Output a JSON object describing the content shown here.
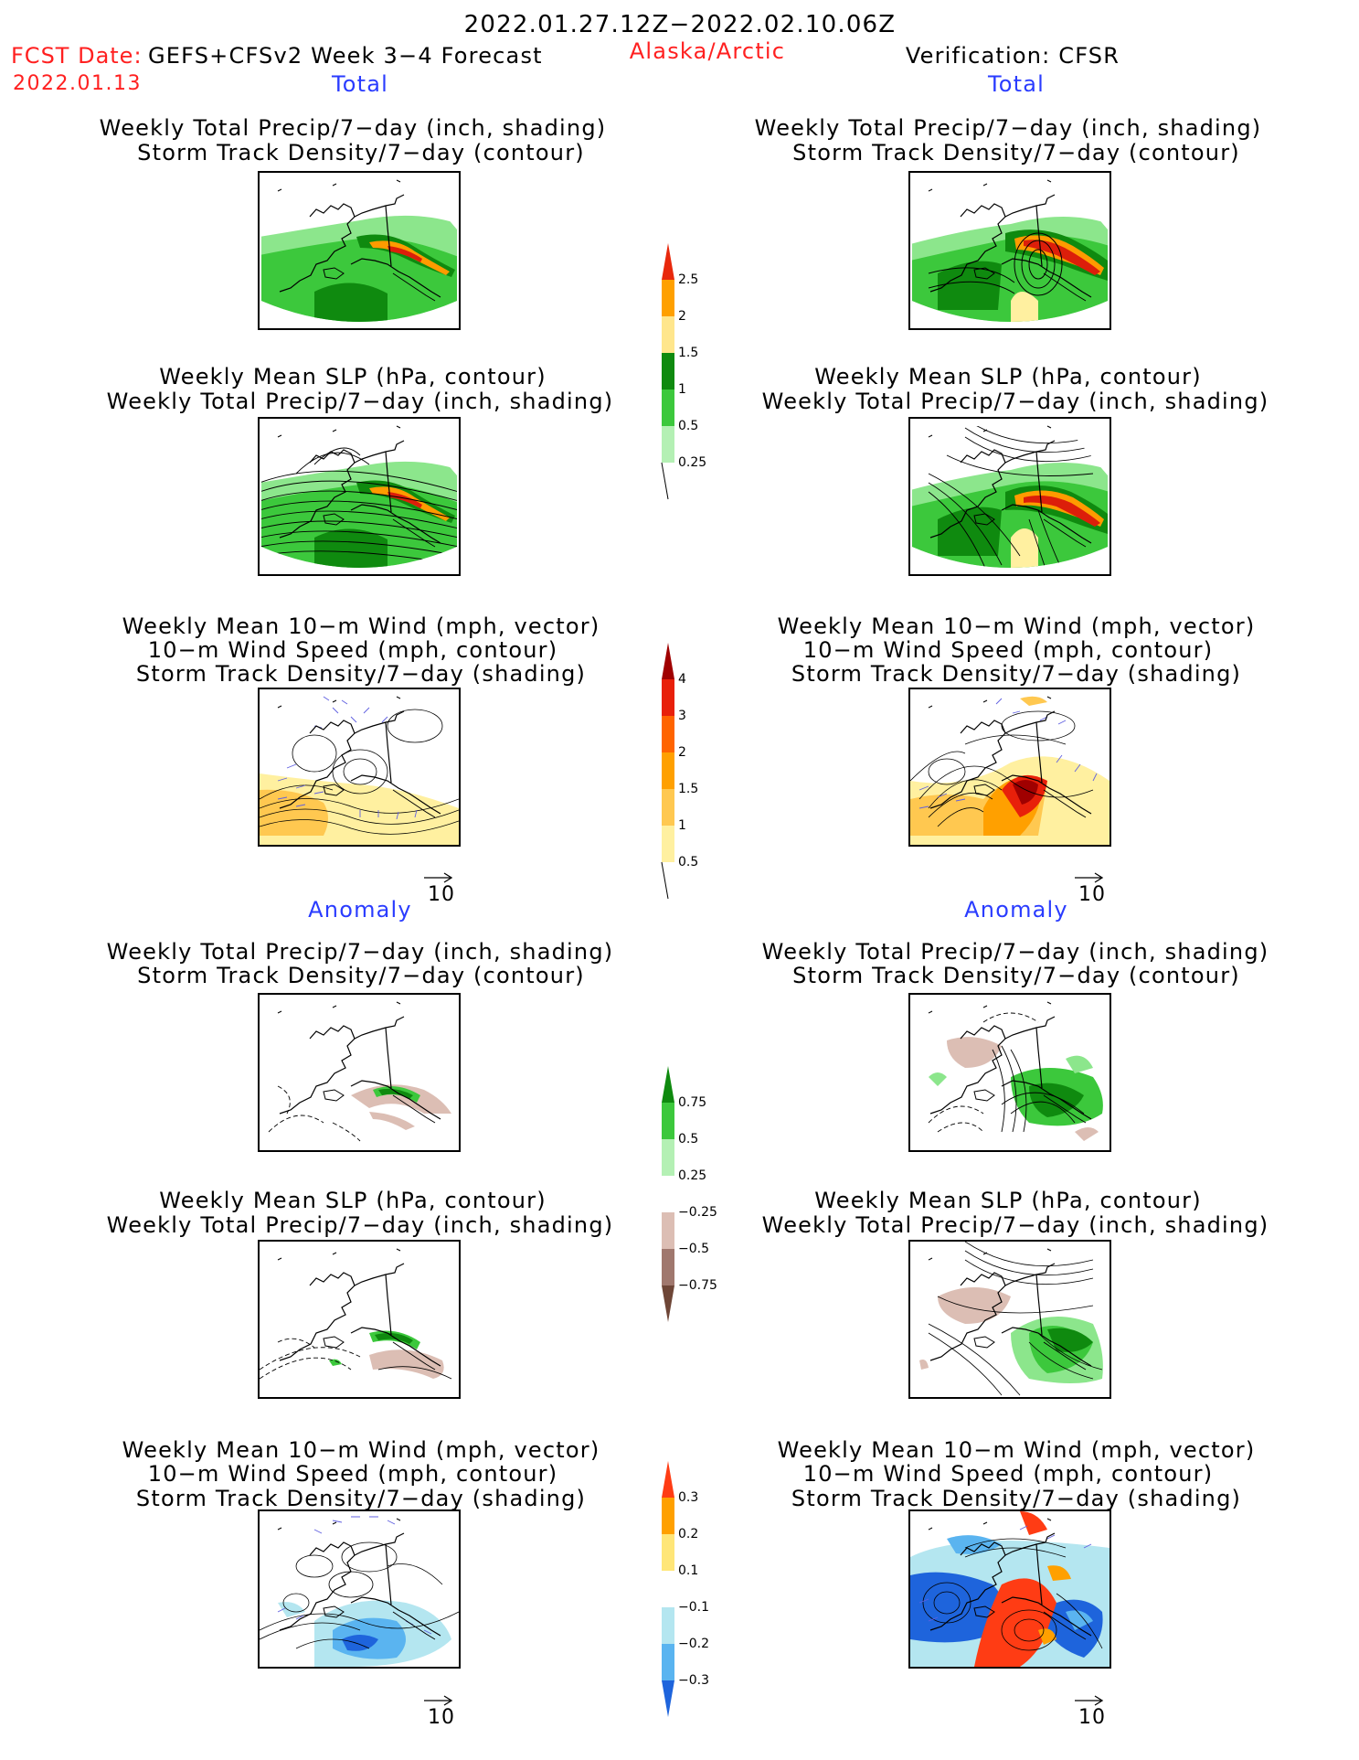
{
  "header": {
    "date_range": "2022.01.27.12Z−2022.02.10.06Z",
    "fcst_label": "FCST Date:",
    "forecast_system": "GEFS+CFSv2 Week 3−4 Forecast",
    "fcst_date": "2022.01.13",
    "region": "Alaska/Arctic",
    "verification": "Verification: CFSR"
  },
  "sections": {
    "total": "Total",
    "anomaly": "Anomaly"
  },
  "titles": {
    "precip_track": [
      "Weekly Total Precip/7−day (inch, shading)",
      "Storm Track Density/7−day (contour)"
    ],
    "slp_precip": [
      "Weekly Mean SLP (hPa, contour)",
      "Weekly Total Precip/7−day (inch, shading)"
    ],
    "wind_track": [
      "Weekly Mean 10−m Wind (mph, vector)",
      "10−m Wind Speed (mph, contour)",
      "Storm Track Density/7−day (shading)"
    ]
  },
  "vector_reference": "10",
  "colorbars": {
    "total_precip": {
      "labels": [
        "2.5",
        "2",
        "1.5",
        "1",
        "0.5",
        "0.25"
      ],
      "colors": [
        "#e8280c",
        "#ffa000",
        "#ffe68c",
        "#0f8a0f",
        "#3cc83c",
        "#b4f0b4"
      ]
    },
    "total_track": {
      "labels": [
        "4",
        "3",
        "2",
        "1.5",
        "1",
        "0.5"
      ],
      "colors": [
        "#a00000",
        "#e8200a",
        "#ff6400",
        "#ffa000",
        "#ffc850",
        "#fff0a0"
      ]
    },
    "anom_precip": {
      "labels": [
        "0.75",
        "0.5",
        "0.25",
        "−0.25",
        "−0.5",
        "−0.75"
      ],
      "colors": [
        "#0f8a0f",
        "#3cc83c",
        "#b4f0b4",
        "#ffffff",
        "#dcbeb4",
        "#a0786e",
        "#6e4637"
      ]
    },
    "anom_track": {
      "labels": [
        "0.3",
        "0.2",
        "0.1",
        "−0.1",
        "−0.2",
        "−0.3"
      ],
      "colors": [
        "#ff3c14",
        "#ffa000",
        "#ffe678",
        "#ffffff",
        "#b4e6f0",
        "#5ab4f0",
        "#1e64dc"
      ]
    }
  },
  "map_style": {
    "green_dark": "#0f8a0f",
    "green_mid": "#3cc83c",
    "green_light": "#8ce68c",
    "orange": "#ff9b00",
    "red": "#dc1e0a",
    "yellow": "#fff0a0",
    "tan": "#dcbeb4",
    "vector": "#6060e0"
  }
}
